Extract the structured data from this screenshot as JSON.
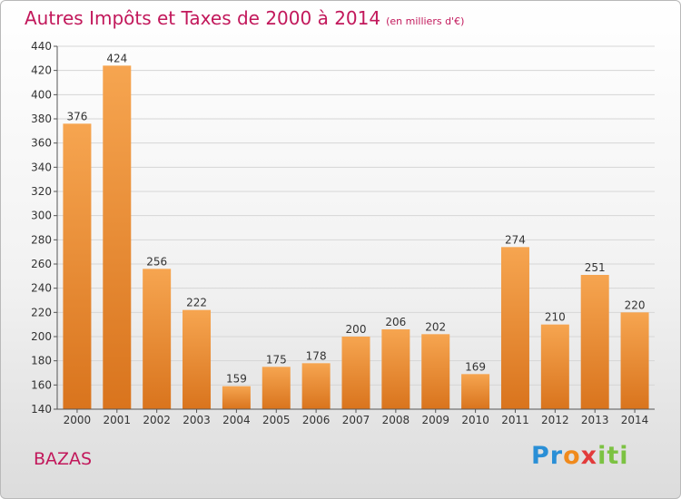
{
  "header": {
    "title": "Autres Impôts et Taxes de 2000 à 2014",
    "subtitle": "(en milliers d'€)"
  },
  "footer": {
    "city": "BAZAS",
    "logo_parts": [
      "Pr",
      "o",
      "x",
      "iti"
    ]
  },
  "colors": {
    "bar_light": "#f6a550",
    "bar_dark": "#d9741d",
    "title": "#c2185b",
    "grid": "#d6d6d6"
  },
  "chart_data": {
    "type": "bar",
    "categories": [
      "2000",
      "2001",
      "2002",
      "2003",
      "2004",
      "2005",
      "2006",
      "2007",
      "2008",
      "2009",
      "2010",
      "2011",
      "2012",
      "2013",
      "2014"
    ],
    "values": [
      376,
      424,
      256,
      222,
      159,
      175,
      178,
      200,
      206,
      202,
      169,
      274,
      210,
      251,
      220
    ],
    "ylim": [
      140,
      440
    ],
    "yticks": [
      140,
      160,
      180,
      200,
      220,
      240,
      260,
      280,
      300,
      320,
      340,
      360,
      380,
      400,
      420,
      440
    ],
    "grid": true,
    "data_labels": true
  }
}
